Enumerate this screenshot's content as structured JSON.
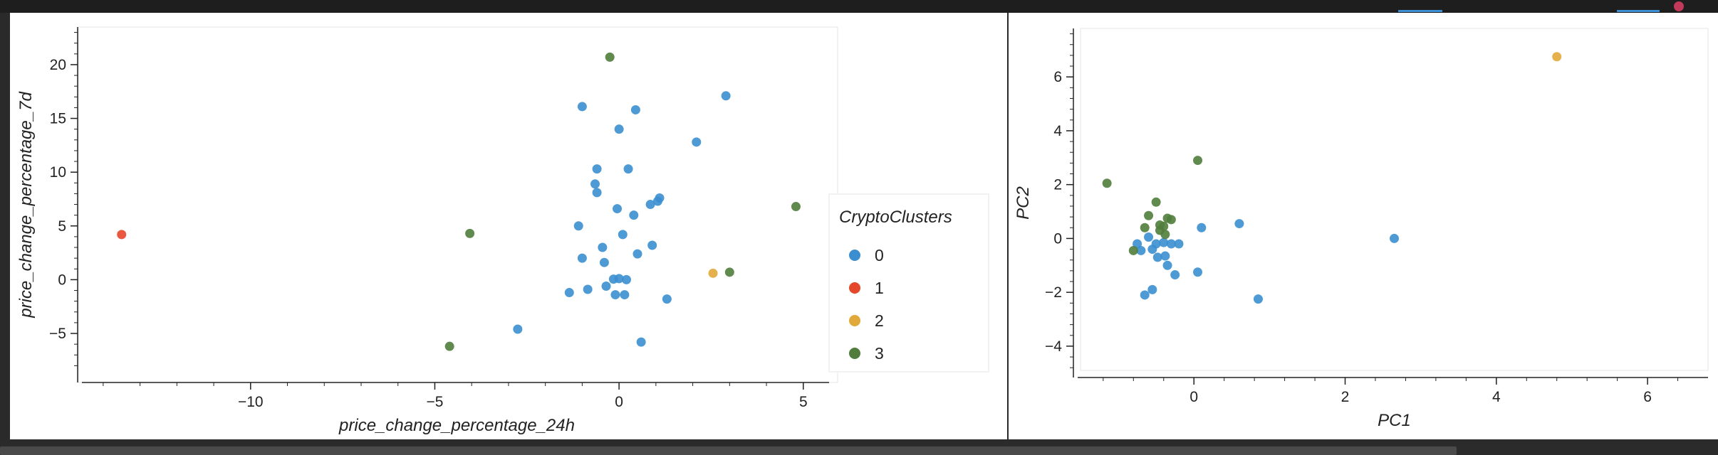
{
  "colors": {
    "clusters": [
      "#3b8fd0",
      "#e5472b",
      "#e1a83a",
      "#507d3c"
    ]
  },
  "chart_data": [
    {
      "type": "scatter",
      "title": "",
      "xlabel": "price_change_percentage_24h",
      "ylabel": "price_change_percentage_7d",
      "xlim": [
        -14.5,
        5.7
      ],
      "ylim": [
        -8.9,
        23.5
      ],
      "xticks": [
        -10,
        -5,
        0,
        5
      ],
      "yticks": [
        -5,
        0,
        5,
        10,
        15,
        20
      ],
      "grid": false,
      "legend": {
        "title": "CryptoClusters",
        "position": "right",
        "entries": [
          "0",
          "1",
          "2",
          "3"
        ]
      },
      "points": [
        {
          "x": -1.0,
          "y": 16.1,
          "c": 0
        },
        {
          "x": 0.45,
          "y": 15.8,
          "c": 0
        },
        {
          "x": 2.9,
          "y": 17.1,
          "c": 0
        },
        {
          "x": 0.0,
          "y": 14.0,
          "c": 0
        },
        {
          "x": 2.1,
          "y": 12.8,
          "c": 0
        },
        {
          "x": -0.6,
          "y": 10.3,
          "c": 0
        },
        {
          "x": 0.25,
          "y": 10.3,
          "c": 0
        },
        {
          "x": -0.65,
          "y": 8.9,
          "c": 0
        },
        {
          "x": -0.6,
          "y": 8.1,
          "c": 0
        },
        {
          "x": 1.1,
          "y": 7.6,
          "c": 0
        },
        {
          "x": 1.05,
          "y": 7.3,
          "c": 0
        },
        {
          "x": 0.85,
          "y": 7.0,
          "c": 0
        },
        {
          "x": -0.05,
          "y": 6.6,
          "c": 0
        },
        {
          "x": 0.4,
          "y": 6.0,
          "c": 0
        },
        {
          "x": -1.1,
          "y": 5.0,
          "c": 0
        },
        {
          "x": 0.1,
          "y": 4.2,
          "c": 0
        },
        {
          "x": 0.9,
          "y": 3.2,
          "c": 0
        },
        {
          "x": -0.45,
          "y": 3.0,
          "c": 0
        },
        {
          "x": 0.5,
          "y": 2.4,
          "c": 0
        },
        {
          "x": -1.0,
          "y": 2.0,
          "c": 0
        },
        {
          "x": -0.4,
          "y": 1.6,
          "c": 0
        },
        {
          "x": -0.15,
          "y": 0.05,
          "c": 0
        },
        {
          "x": 0.0,
          "y": 0.1,
          "c": 0
        },
        {
          "x": 0.2,
          "y": 0.0,
          "c": 0
        },
        {
          "x": -0.35,
          "y": -0.6,
          "c": 0
        },
        {
          "x": -0.85,
          "y": -0.9,
          "c": 0
        },
        {
          "x": -1.35,
          "y": -1.2,
          "c": 0
        },
        {
          "x": -0.1,
          "y": -1.4,
          "c": 0
        },
        {
          "x": 0.15,
          "y": -1.4,
          "c": 0
        },
        {
          "x": 1.3,
          "y": -1.8,
          "c": 0
        },
        {
          "x": -2.75,
          "y": -4.6,
          "c": 0
        },
        {
          "x": 0.6,
          "y": -5.8,
          "c": 0
        },
        {
          "x": -13.5,
          "y": 4.2,
          "c": 1
        },
        {
          "x": 2.55,
          "y": 0.6,
          "c": 2
        },
        {
          "x": -0.25,
          "y": 20.7,
          "c": 3
        },
        {
          "x": 4.8,
          "y": 6.8,
          "c": 3
        },
        {
          "x": -4.05,
          "y": 4.3,
          "c": 3
        },
        {
          "x": 3.0,
          "y": 0.7,
          "c": 3
        },
        {
          "x": -4.6,
          "y": -6.2,
          "c": 3
        }
      ]
    },
    {
      "type": "scatter",
      "title": "",
      "xlabel": "PC1",
      "ylabel": "PC2",
      "xlim": [
        -1.5,
        6.8
      ],
      "ylim": [
        -4.9,
        7.8
      ],
      "xticks": [
        0,
        2,
        4,
        6
      ],
      "yticks": [
        -4,
        -2,
        0,
        2,
        4,
        6
      ],
      "grid": false,
      "points": [
        {
          "x": 0.1,
          "y": 0.4,
          "c": 0
        },
        {
          "x": 0.6,
          "y": 0.55,
          "c": 0
        },
        {
          "x": 2.65,
          "y": 0.0,
          "c": 0
        },
        {
          "x": -0.6,
          "y": 0.05,
          "c": 0
        },
        {
          "x": -0.75,
          "y": -0.2,
          "c": 0
        },
        {
          "x": -0.5,
          "y": -0.2,
          "c": 0
        },
        {
          "x": -0.4,
          "y": -0.15,
          "c": 0
        },
        {
          "x": -0.3,
          "y": -0.2,
          "c": 0
        },
        {
          "x": -0.2,
          "y": -0.2,
          "c": 0
        },
        {
          "x": -0.55,
          "y": -0.4,
          "c": 0
        },
        {
          "x": -0.7,
          "y": -0.45,
          "c": 0
        },
        {
          "x": -0.48,
          "y": -0.7,
          "c": 0
        },
        {
          "x": -0.38,
          "y": -0.65,
          "c": 0
        },
        {
          "x": -0.35,
          "y": -1.0,
          "c": 0
        },
        {
          "x": -0.25,
          "y": -1.35,
          "c": 0
        },
        {
          "x": 0.05,
          "y": -1.25,
          "c": 0
        },
        {
          "x": -0.55,
          "y": -1.9,
          "c": 0
        },
        {
          "x": -0.65,
          "y": -2.1,
          "c": 0
        },
        {
          "x": 0.85,
          "y": -2.25,
          "c": 0
        },
        {
          "x": 4.8,
          "y": 6.75,
          "c": 2
        },
        {
          "x": -1.15,
          "y": 2.05,
          "c": 3
        },
        {
          "x": 0.05,
          "y": 2.9,
          "c": 3
        },
        {
          "x": -0.5,
          "y": 1.35,
          "c": 3
        },
        {
          "x": -0.6,
          "y": 0.85,
          "c": 3
        },
        {
          "x": -0.35,
          "y": 0.75,
          "c": 3
        },
        {
          "x": -0.3,
          "y": 0.7,
          "c": 3
        },
        {
          "x": -0.45,
          "y": 0.5,
          "c": 3
        },
        {
          "x": -0.65,
          "y": 0.4,
          "c": 3
        },
        {
          "x": -0.4,
          "y": 0.45,
          "c": 3
        },
        {
          "x": -0.45,
          "y": 0.3,
          "c": 3
        },
        {
          "x": -0.38,
          "y": 0.15,
          "c": 3
        },
        {
          "x": -0.8,
          "y": -0.45,
          "c": 3
        }
      ]
    }
  ]
}
